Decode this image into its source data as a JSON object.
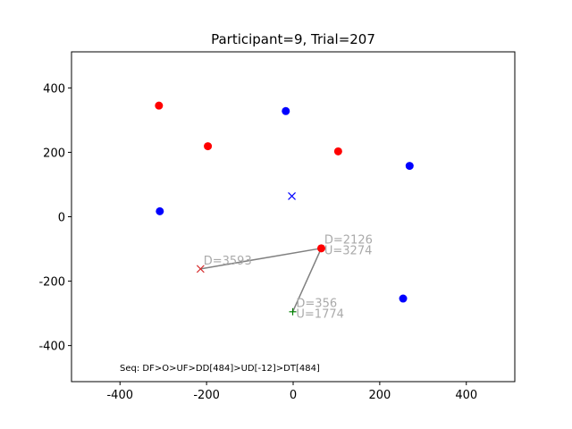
{
  "chart_data": {
    "type": "scatter",
    "title": "Participant=9, Trial=207",
    "xlabel": "",
    "ylabel": "",
    "xlim": [
      -512,
      512
    ],
    "ylim": [
      -512,
      512
    ],
    "xticks": [
      -400,
      -200,
      0,
      200,
      400
    ],
    "yticks": [
      -400,
      -200,
      0,
      200,
      400
    ],
    "grid": false,
    "red_points": [
      {
        "x": -310,
        "y": 345
      },
      {
        "x": -197,
        "y": 219
      },
      {
        "x": 104,
        "y": 203
      },
      {
        "x": 65,
        "y": -98
      }
    ],
    "blue_points": [
      {
        "x": -17,
        "y": 328
      },
      {
        "x": 269,
        "y": 158
      },
      {
        "x": -308,
        "y": 17
      },
      {
        "x": 254,
        "y": -254
      }
    ],
    "markers": [
      {
        "kind": "x",
        "color": "#0000ff",
        "x": -3,
        "y": 64
      },
      {
        "kind": "x",
        "color": "#d62728",
        "x": -214,
        "y": -162
      },
      {
        "kind": "plus",
        "color": "#008000",
        "x": -1,
        "y": -295
      }
    ],
    "path": [
      {
        "x": -1,
        "y": -295
      },
      {
        "x": 65,
        "y": -98
      },
      {
        "x": -214,
        "y": -162
      }
    ],
    "annotations": [
      {
        "text": "D=2126",
        "x": 72,
        "y": -70
      },
      {
        "text": "U=3274",
        "x": 72,
        "y": -103
      },
      {
        "text": "D=3593",
        "x": -207,
        "y": -135
      },
      {
        "text": "D=356",
        "x": 7,
        "y": -267
      },
      {
        "text": "U=1774",
        "x": 7,
        "y": -300
      }
    ],
    "footnote": "Seq: DF>O>UF>DD[484]>UD[-12]>DT[484]"
  },
  "colors": {
    "red": "#ff0000",
    "blue": "#0000ff",
    "path": "#808080",
    "annotation": "#aaaaaa"
  }
}
